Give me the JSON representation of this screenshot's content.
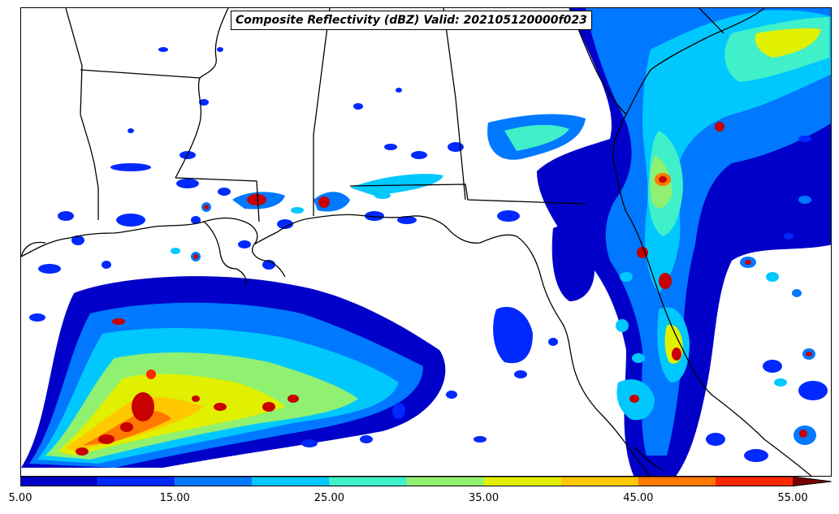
{
  "title": "Composite Reflectivity (dBZ) Valid: 202105120000f023",
  "colorbar": {
    "min": 5,
    "max": 57.5,
    "levels": [
      5,
      10,
      15,
      20,
      25,
      30,
      35,
      40,
      45,
      50,
      55
    ],
    "colors": [
      "#0000c8",
      "#0028ff",
      "#0078ff",
      "#00c8ff",
      "#40f0c8",
      "#90f070",
      "#e0f000",
      "#ffc800",
      "#ff7800",
      "#ff2800",
      "#c80000",
      "#780000"
    ],
    "extend": "max",
    "tick_labels": [
      "5.00",
      "15.00",
      "25.00",
      "35.00",
      "45.00",
      "55.00"
    ],
    "tick_values": [
      5,
      15,
      25,
      35,
      45,
      55
    ]
  }
}
